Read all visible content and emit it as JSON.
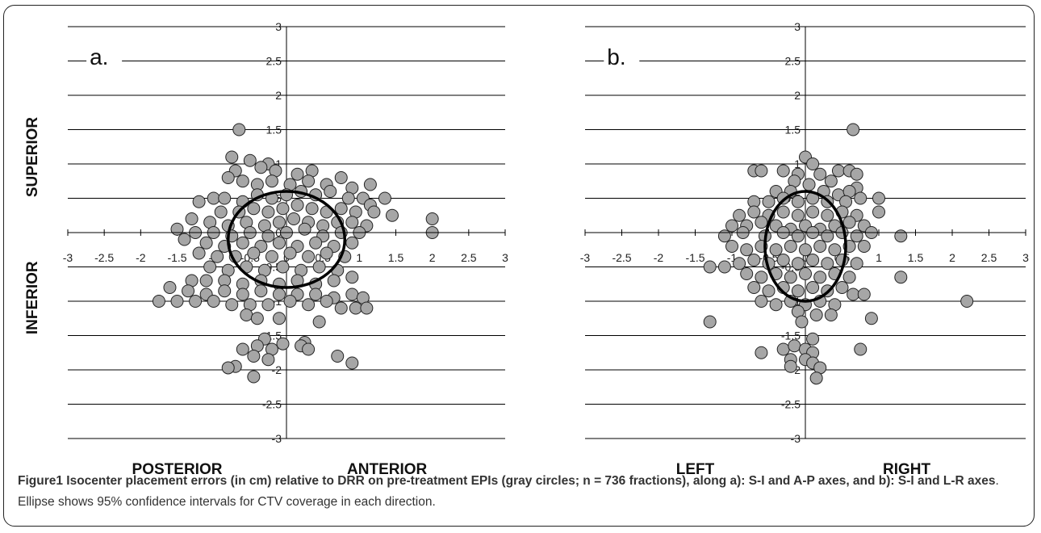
{
  "chart_data": [
    {
      "type": "scatter",
      "panel_label": "a.",
      "xlim": [
        -3,
        3
      ],
      "ylim": [
        -3,
        3
      ],
      "xticks": [
        "-3",
        "-2.5",
        "-2",
        "-1.5",
        "-1",
        "-0.5",
        "0",
        "0.5",
        "1",
        "1.5",
        "2",
        "2.5",
        "3"
      ],
      "yticks": [
        "3",
        "2.5",
        "2",
        "1.5",
        "1",
        "0.5",
        "0",
        "-0.5",
        "-1",
        "-1.5",
        "-2",
        "-2.5",
        "-3"
      ],
      "grid": "horizontal",
      "ylabel_top": "SUPERIOR",
      "ylabel_bottom": "INFERIOR",
      "xlabel_left": "POSTERIOR",
      "xlabel_right": "ANTERIOR",
      "ellipse": {
        "cx": 0.0,
        "cy": -0.1,
        "rx": 0.8,
        "ry": 0.7
      },
      "points": [
        [
          -0.65,
          1.5
        ],
        [
          -0.75,
          1.1
        ],
        [
          -0.5,
          1.05
        ],
        [
          -0.25,
          1.0
        ],
        [
          -0.7,
          0.9
        ],
        [
          -0.35,
          0.95
        ],
        [
          -0.15,
          0.9
        ],
        [
          0.15,
          0.85
        ],
        [
          0.35,
          0.9
        ],
        [
          0.75,
          0.8
        ],
        [
          -0.8,
          0.8
        ],
        [
          -0.6,
          0.75
        ],
        [
          -0.4,
          0.7
        ],
        [
          -0.2,
          0.75
        ],
        [
          0.05,
          0.7
        ],
        [
          0.3,
          0.75
        ],
        [
          0.55,
          0.7
        ],
        [
          1.15,
          0.7
        ],
        [
          0.9,
          0.65
        ],
        [
          -1.0,
          0.5
        ],
        [
          -0.85,
          0.5
        ],
        [
          -0.6,
          0.45
        ],
        [
          -0.4,
          0.55
        ],
        [
          -0.2,
          0.5
        ],
        [
          0.0,
          0.55
        ],
        [
          0.2,
          0.6
        ],
        [
          0.4,
          0.55
        ],
        [
          0.6,
          0.6
        ],
        [
          0.85,
          0.5
        ],
        [
          1.05,
          0.5
        ],
        [
          1.35,
          0.5
        ],
        [
          -1.2,
          0.45
        ],
        [
          -0.9,
          0.3
        ],
        [
          -0.65,
          0.3
        ],
        [
          -0.45,
          0.35
        ],
        [
          -0.25,
          0.3
        ],
        [
          -0.05,
          0.35
        ],
        [
          0.15,
          0.4
        ],
        [
          0.35,
          0.35
        ],
        [
          0.55,
          0.3
        ],
        [
          0.75,
          0.35
        ],
        [
          0.95,
          0.3
        ],
        [
          1.15,
          0.4
        ],
        [
          1.2,
          0.3
        ],
        [
          1.45,
          0.25
        ],
        [
          2.0,
          0.2
        ],
        [
          -1.3,
          0.2
        ],
        [
          -1.05,
          0.15
        ],
        [
          -0.8,
          0.1
        ],
        [
          -0.55,
          0.15
        ],
        [
          -0.3,
          0.1
        ],
        [
          -0.1,
          0.15
        ],
        [
          0.1,
          0.2
        ],
        [
          0.3,
          0.15
        ],
        [
          0.5,
          0.1
        ],
        [
          0.7,
          0.15
        ],
        [
          0.9,
          0.15
        ],
        [
          1.1,
          0.1
        ],
        [
          -1.5,
          0.05
        ],
        [
          -1.25,
          0.0
        ],
        [
          -1.0,
          0.0
        ],
        [
          -0.75,
          -0.05
        ],
        [
          -0.5,
          0.0
        ],
        [
          -0.25,
          -0.05
        ],
        [
          0.0,
          0.0
        ],
        [
          0.25,
          0.05
        ],
        [
          0.5,
          -0.05
        ],
        [
          0.75,
          0.0
        ],
        [
          1.0,
          0.0
        ],
        [
          2.0,
          0.0
        ],
        [
          -1.4,
          -0.1
        ],
        [
          -1.1,
          -0.15
        ],
        [
          -0.85,
          -0.2
        ],
        [
          -0.6,
          -0.15
        ],
        [
          -0.35,
          -0.2
        ],
        [
          -0.1,
          -0.15
        ],
        [
          0.15,
          -0.2
        ],
        [
          0.4,
          -0.15
        ],
        [
          0.65,
          -0.2
        ],
        [
          0.9,
          -0.15
        ],
        [
          -1.2,
          -0.3
        ],
        [
          -0.95,
          -0.35
        ],
        [
          -0.7,
          -0.35
        ],
        [
          -0.45,
          -0.3
        ],
        [
          -0.2,
          -0.35
        ],
        [
          0.05,
          -0.3
        ],
        [
          0.3,
          -0.35
        ],
        [
          0.55,
          -0.3
        ],
        [
          0.8,
          -0.35
        ],
        [
          -1.05,
          -0.5
        ],
        [
          -0.8,
          -0.55
        ],
        [
          -0.55,
          -0.5
        ],
        [
          -0.3,
          -0.55
        ],
        [
          -0.05,
          -0.5
        ],
        [
          0.2,
          -0.55
        ],
        [
          0.45,
          -0.5
        ],
        [
          0.7,
          -0.55
        ],
        [
          -1.3,
          -0.7
        ],
        [
          -1.1,
          -0.7
        ],
        [
          -0.85,
          -0.7
        ],
        [
          -0.6,
          -0.75
        ],
        [
          -0.35,
          -0.7
        ],
        [
          -0.1,
          -0.75
        ],
        [
          0.15,
          -0.7
        ],
        [
          0.4,
          -0.75
        ],
        [
          0.65,
          -0.7
        ],
        [
          0.9,
          -0.65
        ],
        [
          -1.6,
          -0.8
        ],
        [
          -1.35,
          -0.85
        ],
        [
          -1.1,
          -0.9
        ],
        [
          -0.85,
          -0.85
        ],
        [
          -0.6,
          -0.9
        ],
        [
          -0.35,
          -0.85
        ],
        [
          -0.1,
          -0.9
        ],
        [
          0.15,
          -0.9
        ],
        [
          0.4,
          -0.9
        ],
        [
          0.65,
          -0.95
        ],
        [
          0.9,
          -0.9
        ],
        [
          1.05,
          -0.95
        ],
        [
          -1.5,
          -1.0
        ],
        [
          -1.25,
          -1.0
        ],
        [
          -1.0,
          -1.0
        ],
        [
          -1.75,
          -1.0
        ],
        [
          -0.75,
          -1.05
        ],
        [
          -0.5,
          -1.05
        ],
        [
          -0.25,
          -1.05
        ],
        [
          0.05,
          -1.0
        ],
        [
          0.3,
          -1.05
        ],
        [
          0.55,
          -1.0
        ],
        [
          0.75,
          -1.1
        ],
        [
          0.95,
          -1.1
        ],
        [
          1.1,
          -1.1
        ],
        [
          -0.55,
          -1.2
        ],
        [
          -0.4,
          -1.25
        ],
        [
          -0.1,
          -1.25
        ],
        [
          0.45,
          -1.3
        ],
        [
          -0.3,
          -1.55
        ],
        [
          0.25,
          -1.6
        ],
        [
          -0.6,
          -1.7
        ],
        [
          -0.4,
          -1.65
        ],
        [
          -0.2,
          -1.7
        ],
        [
          -0.05,
          -1.62
        ],
        [
          0.2,
          -1.65
        ],
        [
          0.3,
          -1.7
        ],
        [
          0.7,
          -1.8
        ],
        [
          0.9,
          -1.9
        ],
        [
          -0.45,
          -1.8
        ],
        [
          -0.25,
          -1.85
        ],
        [
          -0.7,
          -1.95
        ],
        [
          -0.8,
          -1.97
        ],
        [
          -0.45,
          -2.1
        ]
      ]
    },
    {
      "type": "scatter",
      "panel_label": "b.",
      "xlim": [
        -3,
        3
      ],
      "ylim": [
        -3,
        3
      ],
      "xticks": [
        "-3",
        "-2.5",
        "-2",
        "-1.5",
        "-1",
        "-0.5",
        "0",
        "0.5",
        "1",
        "1.5",
        "2",
        "2.5",
        "3"
      ],
      "yticks": [
        "3",
        "2.5",
        "2",
        "1.5",
        "1",
        "0.5",
        "0",
        "-0.5",
        "-1",
        "-1.5",
        "-2",
        "-2.5",
        "-3"
      ],
      "grid": "horizontal",
      "xlabel_left": "LEFT",
      "xlabel_right": "RIGHT",
      "ellipse": {
        "cx": 0.0,
        "cy": -0.2,
        "rx": 0.55,
        "ry": 0.8
      },
      "points": [
        [
          0.65,
          1.5
        ],
        [
          0.0,
          1.1
        ],
        [
          0.1,
          1.0
        ],
        [
          -0.7,
          0.9
        ],
        [
          -0.6,
          0.9
        ],
        [
          -0.3,
          0.9
        ],
        [
          -0.1,
          0.85
        ],
        [
          0.2,
          0.85
        ],
        [
          0.45,
          0.9
        ],
        [
          0.6,
          0.9
        ],
        [
          0.7,
          0.85
        ],
        [
          -0.15,
          0.75
        ],
        [
          0.05,
          0.7
        ],
        [
          0.35,
          0.75
        ],
        [
          0.7,
          0.65
        ],
        [
          -0.4,
          0.6
        ],
        [
          -0.2,
          0.6
        ],
        [
          0.25,
          0.6
        ],
        [
          0.45,
          0.55
        ],
        [
          0.6,
          0.6
        ],
        [
          -0.7,
          0.45
        ],
        [
          -0.5,
          0.45
        ],
        [
          -0.3,
          0.5
        ],
        [
          -0.1,
          0.45
        ],
        [
          0.1,
          0.5
        ],
        [
          0.3,
          0.45
        ],
        [
          0.55,
          0.45
        ],
        [
          0.75,
          0.5
        ],
        [
          1.0,
          0.5
        ],
        [
          -0.9,
          0.25
        ],
        [
          -0.7,
          0.3
        ],
        [
          -0.5,
          0.25
        ],
        [
          -0.3,
          0.3
        ],
        [
          -0.1,
          0.25
        ],
        [
          0.1,
          0.3
        ],
        [
          0.3,
          0.25
        ],
        [
          0.5,
          0.3
        ],
        [
          0.7,
          0.25
        ],
        [
          1.0,
          0.3
        ],
        [
          -1.0,
          0.1
        ],
        [
          -0.8,
          0.1
        ],
        [
          -0.6,
          0.15
        ],
        [
          -0.4,
          0.1
        ],
        [
          -0.2,
          0.05
        ],
        [
          0.0,
          0.1
        ],
        [
          0.2,
          0.05
        ],
        [
          0.4,
          0.1
        ],
        [
          0.6,
          0.15
        ],
        [
          0.8,
          0.1
        ],
        [
          -1.1,
          -0.05
        ],
        [
          -0.85,
          0.0
        ],
        [
          -0.55,
          -0.05
        ],
        [
          -0.3,
          0.0
        ],
        [
          -0.1,
          -0.05
        ],
        [
          0.1,
          0.0
        ],
        [
          0.3,
          -0.05
        ],
        [
          0.5,
          0.0
        ],
        [
          0.7,
          -0.05
        ],
        [
          0.9,
          0.0
        ],
        [
          1.3,
          -0.05
        ],
        [
          -1.0,
          -0.2
        ],
        [
          -0.8,
          -0.25
        ],
        [
          -0.6,
          -0.2
        ],
        [
          -0.4,
          -0.25
        ],
        [
          -0.2,
          -0.2
        ],
        [
          0.0,
          -0.25
        ],
        [
          0.2,
          -0.2
        ],
        [
          0.4,
          -0.25
        ],
        [
          0.6,
          -0.2
        ],
        [
          0.8,
          -0.2
        ],
        [
          -1.3,
          -0.5
        ],
        [
          -1.1,
          -0.5
        ],
        [
          -0.9,
          -0.45
        ],
        [
          -0.7,
          -0.4
        ],
        [
          -0.5,
          -0.45
        ],
        [
          -0.3,
          -0.4
        ],
        [
          -0.1,
          -0.45
        ],
        [
          0.1,
          -0.4
        ],
        [
          0.3,
          -0.45
        ],
        [
          0.5,
          -0.4
        ],
        [
          0.7,
          -0.45
        ],
        [
          -0.8,
          -0.6
        ],
        [
          -0.6,
          -0.65
        ],
        [
          -0.4,
          -0.6
        ],
        [
          -0.2,
          -0.65
        ],
        [
          0.0,
          -0.6
        ],
        [
          0.2,
          -0.65
        ],
        [
          0.4,
          -0.6
        ],
        [
          0.6,
          -0.65
        ],
        [
          -0.7,
          -0.8
        ],
        [
          -0.5,
          -0.85
        ],
        [
          -0.3,
          -0.8
        ],
        [
          -0.1,
          -0.85
        ],
        [
          0.1,
          -0.8
        ],
        [
          0.3,
          -0.85
        ],
        [
          0.5,
          -0.8
        ],
        [
          0.65,
          -0.9
        ],
        [
          0.8,
          -0.9
        ],
        [
          1.3,
          -0.65
        ],
        [
          -0.6,
          -1.0
        ],
        [
          -0.4,
          -1.05
        ],
        [
          -0.2,
          -1.0
        ],
        [
          0.0,
          -1.05
        ],
        [
          0.2,
          -1.0
        ],
        [
          0.4,
          -1.05
        ],
        [
          -0.1,
          -1.15
        ],
        [
          0.15,
          -1.2
        ],
        [
          0.35,
          -1.2
        ],
        [
          -0.05,
          -1.3
        ],
        [
          0.9,
          -1.25
        ],
        [
          2.2,
          -1.0
        ],
        [
          -1.3,
          -1.3
        ],
        [
          0.1,
          -1.55
        ],
        [
          -0.6,
          -1.75
        ],
        [
          -0.3,
          -1.7
        ],
        [
          -0.15,
          -1.65
        ],
        [
          0.0,
          -1.7
        ],
        [
          0.1,
          -1.75
        ],
        [
          0.75,
          -1.7
        ],
        [
          -0.2,
          -1.85
        ],
        [
          0.0,
          -1.85
        ],
        [
          0.1,
          -1.9
        ],
        [
          -0.2,
          -1.95
        ],
        [
          0.2,
          -1.97
        ],
        [
          0.15,
          -2.12
        ]
      ]
    }
  ],
  "caption": {
    "bold": "Figure1 Isocenter placement errors (in cm) relative to DRR on pre-treatment EPIs (gray circles; n = 736 fractions), along a): S-I and A-P axes, and b): S-I and L-R axes",
    "rest": ". Ellipse shows 95% confidence intervals for CTV coverage in each direction."
  },
  "colors": {
    "point_fill": "#a6a6a6",
    "point_stroke": "#222222",
    "grid": "#000000",
    "ellipse": "#000000"
  }
}
